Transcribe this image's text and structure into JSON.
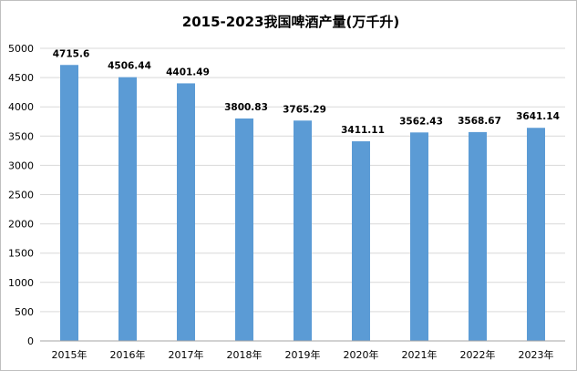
{
  "chart_data": {
    "type": "bar",
    "title": "2015-2023我国啤酒产量(万千升)",
    "categories": [
      "2015年",
      "2016年",
      "2017年",
      "2018年",
      "2019年",
      "2020年",
      "2021年",
      "2022年",
      "2023年"
    ],
    "values": [
      4715.6,
      4506.44,
      4401.49,
      3800.83,
      3765.29,
      3411.11,
      3562.43,
      3568.67,
      3641.14
    ],
    "value_labels": [
      "4715.6",
      "4506.44",
      "4401.49",
      "3800.83",
      "3765.29",
      "3411.11",
      "3562.43",
      "3568.67",
      "3641.14"
    ],
    "yticks": [
      "0",
      "500",
      "1000",
      "1500",
      "2000",
      "2500",
      "3000",
      "3500",
      "4000",
      "4500",
      "5000"
    ],
    "ylim": [
      0,
      5000
    ],
    "ystep": 500,
    "grid": true,
    "legend": "none",
    "bar_color": "#5b9bd5",
    "grid_color": "#d9d9d9",
    "axis_color": "#a6a6a6"
  }
}
